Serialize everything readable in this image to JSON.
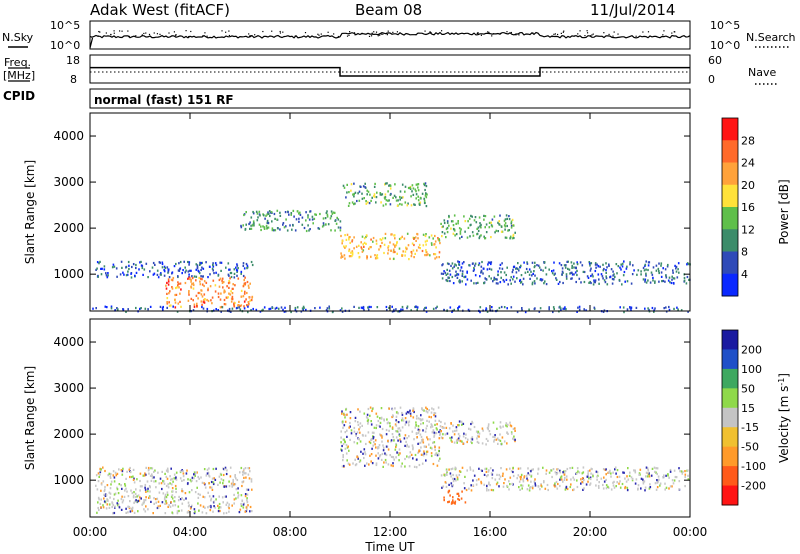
{
  "header": {
    "station": "Adak West (fitACF)",
    "beam": "Beam 08",
    "date": "11/Jul/2014"
  },
  "noise_panel": {
    "left_label": "N.Sky",
    "left_ticks": [
      "10^5",
      "10^0"
    ],
    "right_label": "N.Search",
    "right_ticks": [
      "10^5",
      "10^0"
    ]
  },
  "freq_panel": {
    "left_label_1": "Freq.",
    "left_label_2": "[MHz]",
    "left_ticks": [
      "18",
      "8"
    ],
    "right_label": "Nave",
    "right_ticks": [
      "60",
      "0"
    ]
  },
  "cpid": {
    "label": "CPID",
    "mode": "normal (fast) 151 RF"
  },
  "x_axis": {
    "ticks": [
      "00:00",
      "04:00",
      "08:00",
      "12:00",
      "16:00",
      "20:00",
      "00:00"
    ],
    "label": "Time UT"
  },
  "colors": {
    "power_scale": [
      "#0a28ff",
      "#2f4ab8",
      "#3c8c6a",
      "#5fbf4a",
      "#ffe23a",
      "#ffa23a",
      "#ff6a2a",
      "#ff1414"
    ],
    "velocity_scale": [
      "#ff1414",
      "#ff5a1a",
      "#ff9a2a",
      "#f0c030",
      "#c4c4c4",
      "#8fd94a",
      "#3ea860",
      "#1f50c8",
      "#1a1aa0"
    ]
  },
  "chart_data": [
    {
      "type": "line",
      "name": "noise",
      "x_range": [
        0,
        24
      ],
      "level_sky_log": 2.2,
      "level_search_log": 2.0
    },
    {
      "type": "line",
      "name": "frequency",
      "x_range": [
        0,
        24
      ],
      "ylim": [
        8,
        18
      ],
      "segments": [
        {
          "x": [
            0,
            10
          ],
          "y": 13.5
        },
        {
          "x": [
            10,
            18
          ],
          "y": 10.5
        },
        {
          "x": [
            18,
            24
          ],
          "y": 13.5
        }
      ]
    },
    {
      "type": "heatmap",
      "name": "power",
      "x_range": [
        0,
        24
      ],
      "ylim": [
        200,
        4500
      ],
      "ylabel": "Slant Range [km]",
      "yticks": [
        "1000",
        "2000",
        "3000",
        "4000"
      ],
      "colorbar_label": "Power [dB]",
      "colorbar_ticks": [
        "4",
        "8",
        "12",
        "16",
        "20",
        "24",
        "28"
      ],
      "features": [
        {
          "t0": 0.2,
          "t1": 6.5,
          "r0": 950,
          "r1": 1300,
          "v": 8
        },
        {
          "t0": 3.0,
          "t1": 6.5,
          "r0": 300,
          "r1": 950,
          "v": 26
        },
        {
          "t0": 10.0,
          "t1": 14.0,
          "r0": 1350,
          "r1": 1900,
          "v": 22
        },
        {
          "t0": 10.1,
          "t1": 13.5,
          "r0": 2500,
          "r1": 3000,
          "v": 14
        },
        {
          "t0": 14.0,
          "t1": 17.0,
          "r0": 1800,
          "r1": 2300,
          "v": 14
        },
        {
          "t0": 6.0,
          "t1": 10.0,
          "r0": 1950,
          "r1": 2400,
          "v": 13
        },
        {
          "t0": 14.0,
          "t1": 24.0,
          "r0": 800,
          "r1": 1300,
          "v": 9
        },
        {
          "t0": 0.0,
          "t1": 24.0,
          "r0": 200,
          "r1": 320,
          "v": 8
        }
      ]
    },
    {
      "type": "heatmap",
      "name": "velocity",
      "x_range": [
        0,
        24
      ],
      "ylim": [
        200,
        4500
      ],
      "ylabel": "Slant Range [km]",
      "yticks": [
        "1000",
        "2000",
        "3000",
        "4000"
      ],
      "colorbar_label": "Velocity [m s-1]",
      "colorbar_ticks": [
        "200",
        "100",
        "50",
        "15",
        "-15",
        "-50",
        "-100",
        "-200"
      ],
      "features": [
        {
          "t0": 0.2,
          "t1": 6.5,
          "r0": 300,
          "r1": 1300,
          "v": 0
        },
        {
          "t0": 10.0,
          "t1": 14.0,
          "r0": 1300,
          "r1": 2600,
          "v": 0
        },
        {
          "t0": 14.0,
          "t1": 17.0,
          "r0": 1800,
          "r1": 2300,
          "v": 0
        },
        {
          "t0": 14.0,
          "t1": 24.0,
          "r0": 800,
          "r1": 1300,
          "v": 0
        },
        {
          "t0": 14.0,
          "t1": 15.0,
          "r0": 500,
          "r1": 800,
          "v": -80
        }
      ]
    }
  ]
}
